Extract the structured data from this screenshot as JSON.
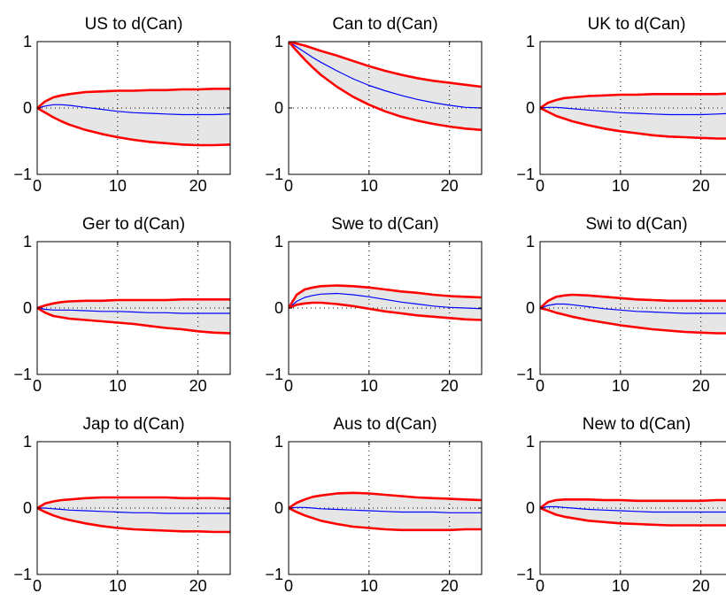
{
  "chart_data": [
    {
      "type": "line",
      "title": "US  to d(Can)",
      "xlim": [
        0,
        24
      ],
      "ylim": [
        -1,
        1
      ],
      "xticks": [
        0,
        10,
        20
      ],
      "yticks": [
        -1,
        0,
        1
      ],
      "xtick_labels": [
        "0",
        "10",
        "20"
      ],
      "ytick_labels": [
        "−1",
        "0",
        "1"
      ],
      "grid": "dotted",
      "x": [
        0,
        1,
        2,
        3,
        4,
        6,
        8,
        10,
        12,
        14,
        16,
        18,
        20,
        22,
        24
      ],
      "series": [
        {
          "values": [
            0,
            0.03,
            0.05,
            0.05,
            0.04,
            0.01,
            -0.02,
            -0.05,
            -0.07,
            -0.08,
            -0.09,
            -0.1,
            -0.1,
            -0.1,
            -0.09
          ]
        },
        {
          "values": [
            0,
            0.1,
            0.16,
            0.19,
            0.21,
            0.24,
            0.25,
            0.26,
            0.26,
            0.27,
            0.27,
            0.28,
            0.28,
            0.29,
            0.29
          ]
        },
        {
          "values": [
            0,
            -0.07,
            -0.14,
            -0.2,
            -0.25,
            -0.33,
            -0.39,
            -0.44,
            -0.48,
            -0.51,
            -0.53,
            -0.55,
            -0.56,
            -0.56,
            -0.55
          ]
        }
      ],
      "colors": {
        "center": "#0000ff",
        "band": "#ff0000",
        "fill": "#e6e6e6"
      }
    },
    {
      "type": "line",
      "title": "Can to d(Can)",
      "xlim": [
        0,
        24
      ],
      "ylim": [
        -1,
        1
      ],
      "xticks": [
        0,
        10,
        20
      ],
      "yticks": [
        -1,
        0,
        1
      ],
      "xtick_labels": [
        "0",
        "10",
        "20"
      ],
      "ytick_labels": [
        "−1",
        "0",
        "1"
      ],
      "grid": "dotted",
      "x": [
        0,
        1,
        2,
        3,
        4,
        6,
        8,
        10,
        12,
        14,
        16,
        18,
        20,
        22,
        24
      ],
      "series": [
        {
          "values": [
            1,
            0.92,
            0.84,
            0.76,
            0.69,
            0.56,
            0.44,
            0.34,
            0.26,
            0.19,
            0.13,
            0.08,
            0.04,
            0.01,
            0
          ]
        },
        {
          "values": [
            1,
            0.97,
            0.94,
            0.9,
            0.86,
            0.79,
            0.71,
            0.63,
            0.56,
            0.5,
            0.45,
            0.41,
            0.38,
            0.35,
            0.32
          ]
        },
        {
          "values": [
            1,
            0.86,
            0.73,
            0.61,
            0.5,
            0.32,
            0.17,
            0.05,
            -0.05,
            -0.13,
            -0.19,
            -0.24,
            -0.28,
            -0.31,
            -0.33
          ]
        }
      ],
      "colors": {
        "center": "#0000ff",
        "band": "#ff0000",
        "fill": "#e6e6e6"
      }
    },
    {
      "type": "line",
      "title": "UK  to d(Can)",
      "xlim": [
        0,
        24
      ],
      "ylim": [
        -1,
        1
      ],
      "xticks": [
        0,
        10,
        20
      ],
      "yticks": [
        -1,
        0,
        1
      ],
      "xtick_labels": [
        "0",
        "10",
        "20"
      ],
      "ytick_labels": [
        "−1",
        "0",
        "1"
      ],
      "grid": "dotted",
      "x": [
        0,
        1,
        2,
        3,
        4,
        6,
        8,
        10,
        12,
        14,
        16,
        18,
        20,
        22,
        24
      ],
      "series": [
        {
          "values": [
            0,
            0.01,
            0.01,
            0,
            -0.01,
            -0.03,
            -0.05,
            -0.07,
            -0.08,
            -0.09,
            -0.1,
            -0.1,
            -0.1,
            -0.09,
            -0.08
          ]
        },
        {
          "values": [
            0,
            0.08,
            0.12,
            0.15,
            0.16,
            0.18,
            0.19,
            0.2,
            0.2,
            0.21,
            0.21,
            0.21,
            0.21,
            0.21,
            0.22
          ]
        },
        {
          "values": [
            0,
            -0.06,
            -0.12,
            -0.16,
            -0.2,
            -0.26,
            -0.31,
            -0.35,
            -0.38,
            -0.41,
            -0.43,
            -0.44,
            -0.45,
            -0.46,
            -0.46
          ]
        }
      ],
      "colors": {
        "center": "#0000ff",
        "band": "#ff0000",
        "fill": "#e6e6e6"
      }
    },
    {
      "type": "line",
      "title": "Ger to d(Can)",
      "xlim": [
        0,
        24
      ],
      "ylim": [
        -1,
        1
      ],
      "xticks": [
        0,
        10,
        20
      ],
      "yticks": [
        -1,
        0,
        1
      ],
      "xtick_labels": [
        "0",
        "10",
        "20"
      ],
      "ytick_labels": [
        "−1",
        "0",
        "1"
      ],
      "grid": "dotted",
      "x": [
        0,
        1,
        2,
        3,
        4,
        6,
        8,
        10,
        12,
        14,
        16,
        18,
        20,
        22,
        24
      ],
      "series": [
        {
          "values": [
            0,
            -0.02,
            -0.03,
            -0.03,
            -0.03,
            -0.04,
            -0.05,
            -0.05,
            -0.06,
            -0.07,
            -0.07,
            -0.08,
            -0.08,
            -0.08,
            -0.08
          ]
        },
        {
          "values": [
            0,
            0.04,
            0.07,
            0.09,
            0.1,
            0.11,
            0.11,
            0.12,
            0.12,
            0.12,
            0.12,
            0.13,
            0.13,
            0.13,
            0.13
          ]
        },
        {
          "values": [
            0,
            -0.07,
            -0.12,
            -0.14,
            -0.16,
            -0.18,
            -0.2,
            -0.22,
            -0.24,
            -0.27,
            -0.3,
            -0.32,
            -0.35,
            -0.37,
            -0.38
          ]
        }
      ],
      "colors": {
        "center": "#0000ff",
        "band": "#ff0000",
        "fill": "#e6e6e6"
      }
    },
    {
      "type": "line",
      "title": "Swe to d(Can)",
      "xlim": [
        0,
        24
      ],
      "ylim": [
        -1,
        1
      ],
      "xticks": [
        0,
        10,
        20
      ],
      "yticks": [
        -1,
        0,
        1
      ],
      "xtick_labels": [
        "0",
        "10",
        "20"
      ],
      "ytick_labels": [
        "−1",
        "0",
        "1"
      ],
      "grid": "dotted",
      "x": [
        0,
        1,
        2,
        3,
        4,
        6,
        8,
        10,
        12,
        14,
        16,
        18,
        20,
        22,
        24
      ],
      "series": [
        {
          "values": [
            0,
            0.1,
            0.16,
            0.19,
            0.21,
            0.22,
            0.2,
            0.17,
            0.13,
            0.09,
            0.06,
            0.03,
            0.01,
            0,
            -0.01
          ]
        },
        {
          "values": [
            0,
            0.2,
            0.28,
            0.31,
            0.33,
            0.34,
            0.33,
            0.31,
            0.28,
            0.25,
            0.23,
            0.2,
            0.18,
            0.17,
            0.16
          ]
        },
        {
          "values": [
            0,
            0.05,
            0.07,
            0.08,
            0.08,
            0.06,
            0.03,
            -0.01,
            -0.05,
            -0.08,
            -0.11,
            -0.13,
            -0.15,
            -0.17,
            -0.18
          ]
        }
      ],
      "colors": {
        "center": "#0000ff",
        "band": "#ff0000",
        "fill": "#e6e6e6"
      }
    },
    {
      "type": "line",
      "title": "Swi to d(Can)",
      "xlim": [
        0,
        24
      ],
      "ylim": [
        -1,
        1
      ],
      "xticks": [
        0,
        10,
        20
      ],
      "yticks": [
        -1,
        0,
        1
      ],
      "xtick_labels": [
        "0",
        "10",
        "20"
      ],
      "ytick_labels": [
        "−1",
        "0",
        "1"
      ],
      "grid": "dotted",
      "x": [
        0,
        1,
        2,
        3,
        4,
        6,
        8,
        10,
        12,
        14,
        16,
        18,
        20,
        22,
        24
      ],
      "series": [
        {
          "values": [
            0,
            0.04,
            0.06,
            0.06,
            0.05,
            0.02,
            -0.01,
            -0.03,
            -0.05,
            -0.06,
            -0.07,
            -0.08,
            -0.08,
            -0.08,
            -0.08
          ]
        },
        {
          "values": [
            0,
            0.11,
            0.17,
            0.19,
            0.2,
            0.19,
            0.17,
            0.15,
            0.13,
            0.12,
            0.11,
            0.11,
            0.11,
            0.11,
            0.11
          ]
        },
        {
          "values": [
            0,
            -0.03,
            -0.07,
            -0.1,
            -0.13,
            -0.18,
            -0.22,
            -0.26,
            -0.29,
            -0.32,
            -0.34,
            -0.36,
            -0.37,
            -0.38,
            -0.38
          ]
        }
      ],
      "colors": {
        "center": "#0000ff",
        "band": "#ff0000",
        "fill": "#e6e6e6"
      }
    },
    {
      "type": "line",
      "title": "Jap to d(Can)",
      "xlim": [
        0,
        24
      ],
      "ylim": [
        -1,
        1
      ],
      "xticks": [
        0,
        10,
        20
      ],
      "yticks": [
        -1,
        0,
        1
      ],
      "xtick_labels": [
        "0",
        "10",
        "20"
      ],
      "ytick_labels": [
        "−1",
        "0",
        "1"
      ],
      "grid": "dotted",
      "x": [
        0,
        1,
        2,
        3,
        4,
        6,
        8,
        10,
        12,
        14,
        16,
        18,
        20,
        22,
        24
      ],
      "series": [
        {
          "values": [
            0,
            0,
            -0.01,
            -0.02,
            -0.03,
            -0.04,
            -0.05,
            -0.06,
            -0.07,
            -0.07,
            -0.08,
            -0.08,
            -0.08,
            -0.08,
            -0.08
          ]
        },
        {
          "values": [
            0,
            0.07,
            0.1,
            0.12,
            0.13,
            0.15,
            0.16,
            0.16,
            0.16,
            0.16,
            0.16,
            0.15,
            0.15,
            0.15,
            0.14
          ]
        },
        {
          "values": [
            0,
            -0.06,
            -0.11,
            -0.15,
            -0.18,
            -0.23,
            -0.27,
            -0.3,
            -0.32,
            -0.33,
            -0.34,
            -0.35,
            -0.35,
            -0.36,
            -0.36
          ]
        }
      ],
      "colors": {
        "center": "#0000ff",
        "band": "#ff0000",
        "fill": "#e6e6e6"
      }
    },
    {
      "type": "line",
      "title": "Aus to d(Can)",
      "xlim": [
        0,
        24
      ],
      "ylim": [
        -1,
        1
      ],
      "xticks": [
        0,
        10,
        20
      ],
      "yticks": [
        -1,
        0,
        1
      ],
      "xtick_labels": [
        "0",
        "10",
        "20"
      ],
      "ytick_labels": [
        "−1",
        "0",
        "1"
      ],
      "grid": "dotted",
      "x": [
        0,
        1,
        2,
        3,
        4,
        6,
        8,
        10,
        12,
        14,
        16,
        18,
        20,
        22,
        24
      ],
      "series": [
        {
          "values": [
            0,
            0.01,
            0.01,
            0,
            -0.01,
            -0.02,
            -0.03,
            -0.04,
            -0.05,
            -0.06,
            -0.06,
            -0.06,
            -0.07,
            -0.07,
            -0.07
          ]
        },
        {
          "values": [
            0,
            0.08,
            0.13,
            0.17,
            0.19,
            0.22,
            0.23,
            0.22,
            0.2,
            0.18,
            0.16,
            0.15,
            0.14,
            0.13,
            0.12
          ]
        },
        {
          "values": [
            0,
            -0.06,
            -0.11,
            -0.15,
            -0.19,
            -0.24,
            -0.28,
            -0.3,
            -0.32,
            -0.33,
            -0.33,
            -0.33,
            -0.33,
            -0.32,
            -0.32
          ]
        }
      ],
      "colors": {
        "center": "#0000ff",
        "band": "#ff0000",
        "fill": "#e6e6e6"
      }
    },
    {
      "type": "line",
      "title": "New to d(Can)",
      "xlim": [
        0,
        24
      ],
      "ylim": [
        -1,
        1
      ],
      "xticks": [
        0,
        10,
        20
      ],
      "yticks": [
        -1,
        0,
        1
      ],
      "xtick_labels": [
        "0",
        "10",
        "20"
      ],
      "ytick_labels": [
        "−1",
        "0",
        "1"
      ],
      "grid": "dotted",
      "x": [
        0,
        1,
        2,
        3,
        4,
        6,
        8,
        10,
        12,
        14,
        16,
        18,
        20,
        22,
        24
      ],
      "series": [
        {
          "values": [
            0,
            0.02,
            0.02,
            0.01,
            0,
            -0.02,
            -0.03,
            -0.04,
            -0.05,
            -0.06,
            -0.06,
            -0.06,
            -0.06,
            -0.06,
            -0.06
          ]
        },
        {
          "values": [
            0,
            0.09,
            0.12,
            0.13,
            0.13,
            0.13,
            0.12,
            0.12,
            0.11,
            0.11,
            0.11,
            0.11,
            0.11,
            0.12,
            0.12
          ]
        },
        {
          "values": [
            0,
            -0.05,
            -0.1,
            -0.13,
            -0.15,
            -0.19,
            -0.21,
            -0.23,
            -0.24,
            -0.25,
            -0.26,
            -0.26,
            -0.26,
            -0.26,
            -0.26
          ]
        }
      ],
      "colors": {
        "center": "#0000ff",
        "band": "#ff0000",
        "fill": "#e6e6e6"
      }
    }
  ]
}
